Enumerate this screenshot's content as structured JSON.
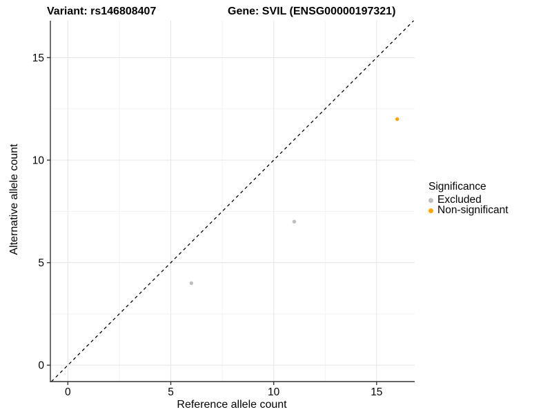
{
  "figure": {
    "title_left": "Variant: rs146808407",
    "title_right": "Gene: SVIL (ENSG00000197321)"
  },
  "chart_data": {
    "type": "scatter",
    "title": "Variant: rs146808407 | Gene: SVIL (ENSG00000197321)",
    "xlabel": "Reference allele count",
    "ylabel": "Alternative allele count",
    "xlim": [
      -0.85,
      16.85
    ],
    "ylim": [
      -0.8,
      16.8
    ],
    "x_ticks": [
      0,
      5,
      10,
      15
    ],
    "y_ticks": [
      0,
      5,
      10,
      15
    ],
    "x_minor_ticks": [
      2.5,
      7.5,
      12.5
    ],
    "y_minor_ticks": [
      2.5,
      7.5,
      12.5
    ],
    "grid": "major+minor",
    "colors": {
      "major_grid": "#E5E5E5",
      "minor_grid": "#F2F2F2",
      "axis_line": "#333333",
      "identity_line": "#000000"
    },
    "identity_line": {
      "style": "dashed",
      "equation": "y = x"
    },
    "series": [
      {
        "name": "Excluded",
        "color": "#BEBEBE",
        "points": [
          [
            6,
            4
          ],
          [
            11,
            7
          ]
        ]
      },
      {
        "name": "Non-significant",
        "color": "#FFA500",
        "points": [
          [
            16,
            12
          ]
        ]
      }
    ],
    "legend": {
      "title": "Significance",
      "position": "right"
    }
  }
}
